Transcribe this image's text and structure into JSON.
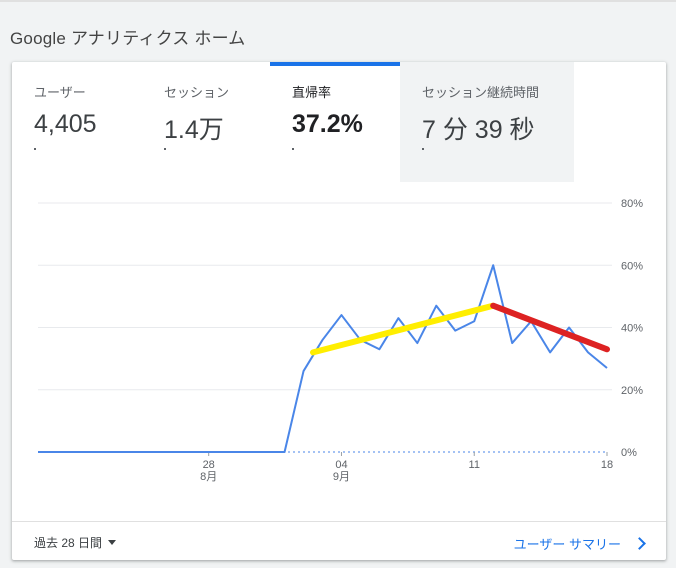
{
  "page": {
    "title": "Google アナリティクス ホーム"
  },
  "tabs": [
    {
      "label": "ユーザー",
      "value": "4,405"
    },
    {
      "label": "セッション",
      "value": "1.4万"
    },
    {
      "label": "直帰率",
      "value": "37.2%"
    },
    {
      "label": "セッション継続時間",
      "value": "7 分 39 秒"
    }
  ],
  "footer": {
    "range_label": "過去 28 日間",
    "summary_link": "ユーザー サマリー"
  },
  "colors": {
    "accent": "#1a73e8",
    "line": "#4a86e8",
    "trend_up": "#ffee00",
    "trend_down": "#dd2222"
  },
  "chart_data": {
    "type": "line",
    "y_ticks": [
      "80%",
      "60%",
      "40%",
      "20%",
      "0%"
    ],
    "ylim": [
      0,
      80
    ],
    "x_ticks": [
      {
        "index": 9,
        "day": "28",
        "month": "8月"
      },
      {
        "index": 16,
        "day": "04",
        "month": "9月"
      },
      {
        "index": 23,
        "day": "11",
        "month": ""
      },
      {
        "index": 30,
        "day": "18",
        "month": ""
      }
    ],
    "series": [
      {
        "values": [
          0,
          0,
          0,
          0,
          0,
          0,
          0,
          0,
          0,
          0,
          0,
          0,
          0,
          0,
          26,
          36,
          44,
          36,
          33,
          43,
          35,
          47,
          39,
          42,
          60,
          35,
          42,
          32,
          40,
          32,
          27
        ]
      }
    ],
    "trend_lines": [
      {
        "color": "trend_up",
        "from": {
          "index": 14.5,
          "value": 32
        },
        "to": {
          "index": 24,
          "value": 47
        }
      },
      {
        "color": "trend_down",
        "from": {
          "index": 24,
          "value": 47
        },
        "to": {
          "index": 30,
          "value": 33
        }
      }
    ],
    "grid": true
  }
}
